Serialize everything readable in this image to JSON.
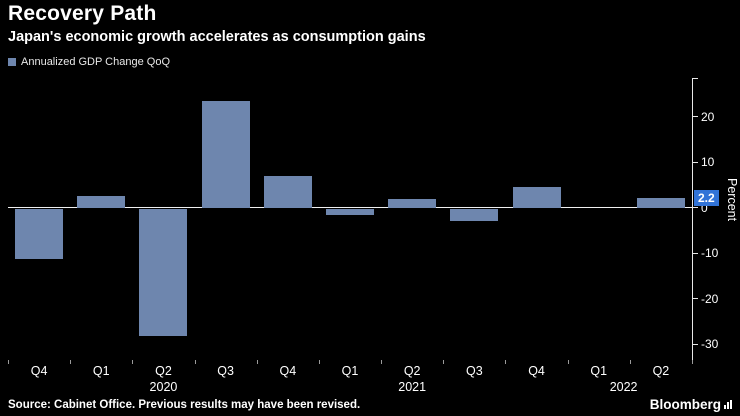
{
  "header": {
    "title": "Recovery Path",
    "subtitle": "Japan's economic growth accelerates as consumption gains"
  },
  "legend": {
    "label": "Annualized GDP Change QoQ"
  },
  "chart_data": {
    "type": "bar",
    "title": "Recovery Path",
    "subtitle": "Japan's economic growth accelerates as consumption gains",
    "series_name": "Annualized GDP Change QoQ",
    "categories": [
      "Q4",
      "Q1",
      "Q2",
      "Q3",
      "Q4",
      "Q1",
      "Q2",
      "Q3",
      "Q4",
      "Q1",
      "Q2"
    ],
    "values": [
      -11,
      2.5,
      -28.1,
      23.5,
      7,
      -1.5,
      2,
      -2.7,
      4.5,
      0,
      2.2
    ],
    "year_labels": [
      {
        "text": "2020",
        "slot": 2
      },
      {
        "text": "2021",
        "slot": 6
      },
      {
        "text": "2022",
        "slot": 9.4
      }
    ],
    "xlabel": "",
    "ylabel": "Percent",
    "ylim": [
      -33.5,
      28.5
    ],
    "y_ticks": [
      20,
      10,
      0,
      -10,
      -20,
      -30
    ],
    "grid": false,
    "legend_position": "top-left",
    "bar_color": "#6e86ae",
    "last_value_label": "2.2",
    "last_value_bg": "#3173d7"
  },
  "footer": {
    "source": "Source: Cabinet Office. Previous results may have been revised.",
    "logo": "Bloomberg"
  }
}
